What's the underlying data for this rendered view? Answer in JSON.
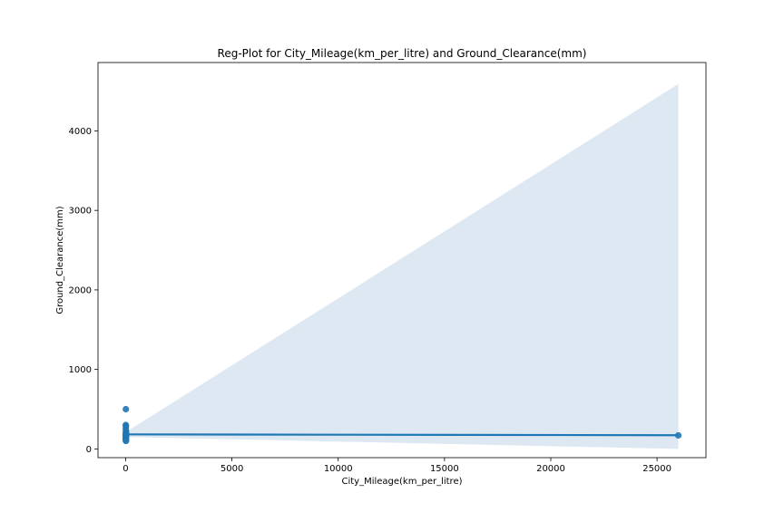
{
  "chart_data": {
    "type": "scatter",
    "title": "Reg-Plot for City_Mileage(km_per_litre) and Ground_Clearance(mm)",
    "xlabel": "City_Mileage(km_per_litre)",
    "ylabel": "Ground_Clearance(mm)",
    "xlim": [
      -1300,
      27300
    ],
    "ylim": [
      -110,
      4860
    ],
    "x_ticks": [
      0,
      5000,
      10000,
      15000,
      20000,
      25000
    ],
    "y_ticks": [
      0,
      1000,
      2000,
      3000,
      4000
    ],
    "grid": false,
    "points": [
      {
        "x": 10,
        "y": 500
      },
      {
        "x": 5,
        "y": 300
      },
      {
        "x": 15,
        "y": 290
      },
      {
        "x": 8,
        "y": 260
      },
      {
        "x": 12,
        "y": 230
      },
      {
        "x": 18,
        "y": 210
      },
      {
        "x": 10,
        "y": 200
      },
      {
        "x": 14,
        "y": 190
      },
      {
        "x": 6,
        "y": 180
      },
      {
        "x": 20,
        "y": 170
      },
      {
        "x": 9,
        "y": 165
      },
      {
        "x": 16,
        "y": 160
      },
      {
        "x": 11,
        "y": 150
      },
      {
        "x": 13,
        "y": 140
      },
      {
        "x": 7,
        "y": 130
      },
      {
        "x": 17,
        "y": 120
      },
      {
        "x": 10,
        "y": 110
      },
      {
        "x": 15,
        "y": 100
      },
      {
        "x": 26000,
        "y": 170
      }
    ],
    "regression_line": {
      "x": [
        10,
        26000
      ],
      "y": [
        183,
        172
      ]
    },
    "confidence_band": {
      "x": [
        10,
        26000
      ],
      "lower": [
        150,
        0
      ],
      "upper": [
        210,
        4590
      ]
    },
    "colors": {
      "points": "#1f77b4",
      "line": "#1f77b4",
      "band": "#dde8f3"
    }
  }
}
